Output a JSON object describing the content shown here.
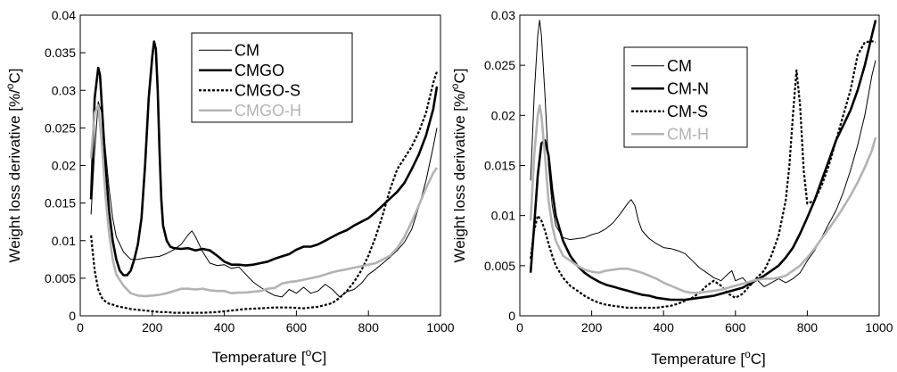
{
  "chart_data": [
    {
      "type": "line",
      "xlabel": "Temperature [",
      "xlabel_sup": "o",
      "xlabel_tail": "C]",
      "ylabel": "Weight loss derivative [%/",
      "ylabel_sup": "o",
      "ylabel_tail": "C]",
      "xlim": [
        0,
        1000
      ],
      "ylim": [
        0,
        0.04
      ],
      "xticks": [
        "0",
        "200",
        "400",
        "600",
        "800",
        "1000"
      ],
      "yticks": [
        "0",
        "0.005",
        "0.01",
        "0.015",
        "0.02",
        "0.025",
        "0.03",
        "0.035",
        "0.04"
      ],
      "grid": false,
      "legend": "top-center",
      "series": [
        {
          "name": "CM",
          "color": "#000000",
          "width": 1,
          "dash": "",
          "x": [
            30,
            40,
            50,
            60,
            70,
            80,
            90,
            100,
            120,
            140,
            160,
            180,
            200,
            220,
            240,
            260,
            280,
            300,
            310,
            320,
            340,
            360,
            380,
            400,
            420,
            440,
            460,
            480,
            500,
            520,
            540,
            560,
            580,
            600,
            620,
            640,
            660,
            680,
            700,
            720,
            740,
            760,
            780,
            800,
            820,
            840,
            860,
            880,
            900,
            920,
            940,
            960,
            980,
            990
          ],
          "values": [
            0.0135,
            0.022,
            0.0285,
            0.027,
            0.022,
            0.017,
            0.013,
            0.0105,
            0.0085,
            0.0075,
            0.0075,
            0.0077,
            0.0078,
            0.0079,
            0.0083,
            0.0088,
            0.0095,
            0.0108,
            0.0113,
            0.0105,
            0.0085,
            0.007,
            0.0067,
            0.0068,
            0.0063,
            0.0065,
            0.0055,
            0.0045,
            0.0038,
            0.0032,
            0.0027,
            0.0025,
            0.0035,
            0.003,
            0.0038,
            0.003,
            0.0033,
            0.0042,
            0.0035,
            0.0025,
            0.0032,
            0.0035,
            0.0043,
            0.0055,
            0.0062,
            0.007,
            0.0078,
            0.0087,
            0.0098,
            0.0115,
            0.0145,
            0.018,
            0.0225,
            0.025
          ]
        },
        {
          "name": "CMGO",
          "color": "#000000",
          "width": 2.6,
          "dash": "",
          "x": [
            30,
            40,
            50,
            55,
            60,
            70,
            80,
            90,
            100,
            110,
            120,
            130,
            140,
            150,
            160,
            170,
            180,
            190,
            200,
            205,
            210,
            215,
            220,
            225,
            230,
            240,
            250,
            260,
            280,
            300,
            320,
            340,
            360,
            380,
            400,
            420,
            440,
            460,
            480,
            500,
            520,
            540,
            560,
            580,
            600,
            620,
            640,
            660,
            680,
            700,
            720,
            740,
            760,
            780,
            800,
            820,
            840,
            860,
            880,
            900,
            920,
            940,
            960,
            980,
            990
          ],
          "values": [
            0.0155,
            0.029,
            0.033,
            0.032,
            0.028,
            0.02,
            0.014,
            0.01,
            0.0075,
            0.006,
            0.0054,
            0.0054,
            0.006,
            0.0075,
            0.0095,
            0.013,
            0.02,
            0.029,
            0.0345,
            0.0365,
            0.0355,
            0.03,
            0.022,
            0.0155,
            0.012,
            0.01,
            0.0092,
            0.009,
            0.0089,
            0.009,
            0.0087,
            0.0089,
            0.0087,
            0.008,
            0.0072,
            0.0068,
            0.0068,
            0.0067,
            0.0068,
            0.007,
            0.0072,
            0.0076,
            0.0079,
            0.0082,
            0.0088,
            0.0092,
            0.0092,
            0.0095,
            0.01,
            0.0105,
            0.011,
            0.0114,
            0.012,
            0.0125,
            0.013,
            0.0138,
            0.0147,
            0.0156,
            0.0165,
            0.0177,
            0.0195,
            0.0215,
            0.024,
            0.0275,
            0.0305
          ]
        },
        {
          "name": "CMGO-S",
          "color": "#000000",
          "width": 2.2,
          "dash": "3,2",
          "x": [
            30,
            40,
            50,
            60,
            70,
            80,
            90,
            100,
            120,
            140,
            160,
            180,
            200,
            220,
            240,
            260,
            280,
            300,
            340,
            380,
            420,
            460,
            500,
            540,
            580,
            620,
            660,
            700,
            720,
            740,
            760,
            780,
            800,
            820,
            840,
            860,
            880,
            900,
            920,
            940,
            960,
            980,
            990
          ],
          "values": [
            0.0107,
            0.006,
            0.0035,
            0.0024,
            0.0019,
            0.0016,
            0.0015,
            0.0013,
            0.0011,
            0.0009,
            0.0008,
            0.0007,
            0.0006,
            0.0005,
            0.0005,
            0.0004,
            0.0004,
            0.0004,
            0.0004,
            0.0005,
            0.0007,
            0.0009,
            0.001,
            0.0011,
            0.0011,
            0.001,
            0.0012,
            0.0017,
            0.0024,
            0.0033,
            0.0045,
            0.006,
            0.008,
            0.0105,
            0.0135,
            0.0168,
            0.0195,
            0.021,
            0.0225,
            0.0245,
            0.027,
            0.031,
            0.0325
          ]
        },
        {
          "name": "CMGO-H",
          "color": "#b3b3b3",
          "width": 2.6,
          "dash": "",
          "x": [
            30,
            40,
            50,
            60,
            70,
            80,
            90,
            100,
            120,
            140,
            160,
            180,
            200,
            220,
            240,
            260,
            280,
            300,
            320,
            340,
            360,
            380,
            400,
            420,
            440,
            460,
            480,
            500,
            520,
            540,
            560,
            580,
            600,
            620,
            640,
            660,
            680,
            700,
            720,
            740,
            760,
            780,
            800,
            820,
            840,
            860,
            880,
            900,
            920,
            940,
            960,
            980,
            990
          ],
          "values": [
            0.021,
            0.027,
            0.028,
            0.023,
            0.016,
            0.011,
            0.0075,
            0.0055,
            0.004,
            0.003,
            0.0027,
            0.0026,
            0.0027,
            0.0028,
            0.003,
            0.0033,
            0.0036,
            0.0036,
            0.0035,
            0.0036,
            0.0034,
            0.0033,
            0.0033,
            0.003,
            0.0031,
            0.0031,
            0.0032,
            0.0033,
            0.0036,
            0.0037,
            0.0043,
            0.0045,
            0.0046,
            0.0048,
            0.005,
            0.0052,
            0.0055,
            0.0058,
            0.006,
            0.0062,
            0.0064,
            0.0066,
            0.0068,
            0.007,
            0.0075,
            0.008,
            0.009,
            0.0105,
            0.0125,
            0.0147,
            0.017,
            0.019,
            0.0197
          ]
        }
      ]
    },
    {
      "type": "line",
      "xlabel": "Temperature [",
      "xlabel_sup": "o",
      "xlabel_tail": "C]",
      "ylabel": "Weight loss derivative [%/",
      "ylabel_sup": "o",
      "ylabel_tail": "C]",
      "xlim": [
        0,
        1000
      ],
      "ylim": [
        0,
        0.03
      ],
      "xticks": [
        "0",
        "200",
        "400",
        "600",
        "800",
        "1000"
      ],
      "yticks": [
        "0",
        "0.005",
        "0.01",
        "0.015",
        "0.02",
        "0.025",
        "0.03"
      ],
      "grid": false,
      "legend": "top-center",
      "series": [
        {
          "name": "CM",
          "color": "#000000",
          "width": 1,
          "dash": "",
          "x": [
            30,
            40,
            50,
            55,
            60,
            70,
            80,
            90,
            100,
            120,
            140,
            160,
            180,
            200,
            220,
            240,
            260,
            280,
            300,
            310,
            320,
            330,
            340,
            360,
            380,
            400,
            420,
            440,
            460,
            480,
            500,
            520,
            540,
            560,
            580,
            590,
            600,
            620,
            640,
            660,
            680,
            700,
            720,
            740,
            760,
            780,
            800,
            820,
            840,
            860,
            880,
            900,
            920,
            940,
            960,
            980,
            990
          ],
          "values": [
            0.0135,
            0.022,
            0.028,
            0.0295,
            0.028,
            0.022,
            0.015,
            0.011,
            0.009,
            0.0078,
            0.0076,
            0.0077,
            0.0078,
            0.0081,
            0.0083,
            0.0087,
            0.0093,
            0.0102,
            0.0112,
            0.0116,
            0.011,
            0.0095,
            0.0085,
            0.0077,
            0.0072,
            0.0068,
            0.0067,
            0.0065,
            0.0062,
            0.0055,
            0.0048,
            0.0043,
            0.0038,
            0.0035,
            0.0042,
            0.0045,
            0.0035,
            0.0038,
            0.003,
            0.0036,
            0.0029,
            0.0033,
            0.0037,
            0.0033,
            0.0037,
            0.0043,
            0.0055,
            0.0065,
            0.0078,
            0.0092,
            0.0105,
            0.0123,
            0.0145,
            0.017,
            0.02,
            0.024,
            0.0255
          ]
        },
        {
          "name": "CM-N",
          "color": "#000000",
          "width": 2.6,
          "dash": "",
          "x": [
            30,
            40,
            50,
            60,
            70,
            80,
            90,
            100,
            120,
            140,
            160,
            180,
            200,
            220,
            240,
            260,
            280,
            300,
            320,
            340,
            360,
            380,
            400,
            420,
            440,
            460,
            480,
            500,
            520,
            540,
            560,
            580,
            600,
            620,
            640,
            660,
            680,
            700,
            720,
            740,
            760,
            780,
            800,
            820,
            840,
            860,
            880,
            900,
            920,
            940,
            960,
            980,
            990
          ],
          "values": [
            0.0043,
            0.009,
            0.014,
            0.0172,
            0.0175,
            0.016,
            0.0125,
            0.01,
            0.0075,
            0.006,
            0.005,
            0.0043,
            0.0038,
            0.0034,
            0.0031,
            0.0029,
            0.0027,
            0.0025,
            0.0023,
            0.0021,
            0.002,
            0.0018,
            0.0017,
            0.0016,
            0.0016,
            0.0016,
            0.0017,
            0.0018,
            0.0019,
            0.002,
            0.0022,
            0.0024,
            0.0026,
            0.0028,
            0.0032,
            0.0036,
            0.004,
            0.0045,
            0.005,
            0.0058,
            0.0068,
            0.0082,
            0.0098,
            0.0115,
            0.0135,
            0.0155,
            0.0175,
            0.019,
            0.0205,
            0.0225,
            0.025,
            0.028,
            0.0295
          ]
        },
        {
          "name": "CM-S",
          "color": "#000000",
          "width": 2.2,
          "dash": "3,2",
          "x": [
            30,
            40,
            50,
            60,
            70,
            80,
            90,
            100,
            120,
            140,
            160,
            180,
            200,
            220,
            240,
            260,
            280,
            300,
            320,
            340,
            360,
            380,
            400,
            420,
            440,
            460,
            480,
            500,
            520,
            540,
            560,
            580,
            600,
            620,
            640,
            660,
            680,
            700,
            720,
            740,
            750,
            760,
            770,
            780,
            790,
            800,
            820,
            840,
            860,
            880,
            900,
            920,
            940,
            960,
            980,
            990
          ],
          "values": [
            0.0057,
            0.0085,
            0.01,
            0.0095,
            0.0085,
            0.0072,
            0.006,
            0.005,
            0.0038,
            0.003,
            0.0025,
            0.002,
            0.0016,
            0.0013,
            0.0011,
            0.001,
            0.0009,
            0.0008,
            0.0008,
            0.0008,
            0.0008,
            0.0008,
            0.0009,
            0.001,
            0.0012,
            0.0015,
            0.0018,
            0.0023,
            0.003,
            0.0035,
            0.003,
            0.0022,
            0.0018,
            0.0022,
            0.003,
            0.0038,
            0.0045,
            0.006,
            0.008,
            0.0115,
            0.015,
            0.02,
            0.0245,
            0.021,
            0.0145,
            0.0112,
            0.0115,
            0.013,
            0.015,
            0.0175,
            0.02,
            0.0225,
            0.026,
            0.0273,
            0.0274,
            0.0273
          ]
        },
        {
          "name": "CM-H",
          "color": "#b3b3b3",
          "width": 2.6,
          "dash": "",
          "x": [
            30,
            40,
            50,
            55,
            60,
            70,
            80,
            90,
            100,
            120,
            140,
            160,
            180,
            200,
            220,
            240,
            260,
            280,
            300,
            320,
            340,
            360,
            380,
            400,
            420,
            440,
            460,
            480,
            500,
            520,
            540,
            560,
            580,
            600,
            620,
            640,
            660,
            680,
            700,
            720,
            740,
            760,
            780,
            800,
            820,
            840,
            860,
            880,
            900,
            920,
            940,
            960,
            980,
            990
          ],
          "values": [
            0.0095,
            0.016,
            0.02,
            0.021,
            0.02,
            0.016,
            0.0115,
            0.009,
            0.0075,
            0.006,
            0.0055,
            0.005,
            0.0046,
            0.0044,
            0.0043,
            0.0045,
            0.0046,
            0.0047,
            0.0047,
            0.0045,
            0.0043,
            0.004,
            0.0037,
            0.0033,
            0.003,
            0.0027,
            0.0024,
            0.0023,
            0.0023,
            0.0024,
            0.0025,
            0.0026,
            0.0028,
            0.003,
            0.0032,
            0.0034,
            0.0036,
            0.0037,
            0.0037,
            0.0038,
            0.004,
            0.0045,
            0.005,
            0.0058,
            0.0067,
            0.0077,
            0.0087,
            0.0097,
            0.0108,
            0.012,
            0.0133,
            0.0148,
            0.0165,
            0.0178
          ]
        }
      ]
    }
  ]
}
